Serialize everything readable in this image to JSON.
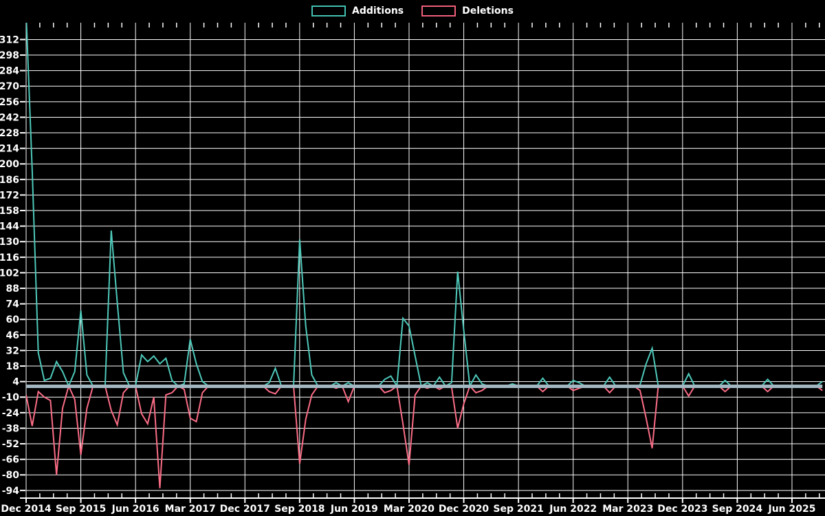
{
  "page": {
    "background_color": "#000000"
  },
  "legend": {
    "position": "top-center",
    "items": [
      {
        "label": "Additions",
        "color": "#43c1b3"
      },
      {
        "label": "Deletions",
        "color": "#ef5f7b"
      }
    ]
  },
  "chart_data": {
    "type": "line",
    "title": "",
    "grid": true,
    "legend_position": "top-center",
    "x_axis": {
      "tick_labels": [
        "Dec 2014",
        "Sep 2015",
        "Jun 2016",
        "Mar 2017",
        "Dec 2017",
        "Sep 2018",
        "Jun 2019",
        "Mar 2020",
        "Dec 2020",
        "Sep 2021",
        "Jun 2022",
        "Mar 2023",
        "Dec 2023",
        "Sep 2024",
        "Jun 2025"
      ],
      "months_per_tick": 9,
      "minor_ticks_per_interval": 4
    },
    "y_axis": {
      "tick_labels": [
        312,
        298,
        284,
        270,
        256,
        242,
        228,
        214,
        200,
        186,
        172,
        158,
        144,
        130,
        116,
        102,
        88,
        74,
        60,
        46,
        32,
        18,
        4,
        -10,
        -24,
        -38,
        -52,
        -66,
        -80,
        -94
      ],
      "tick_step": 14,
      "visible_range": [
        -100,
        327
      ]
    },
    "colors": {
      "additions_line": "#4ec9ba",
      "deletions_line": "#fb6d86",
      "baseline_line": "#a2b7c1",
      "grid_line": "#ffffff",
      "axis_text": "#ffffff"
    },
    "months_total": 132,
    "baseline": {
      "additions": 0,
      "deletions": 0
    },
    "first_point_note": "Dec 2014 additions peak is clipped at the top of the plot",
    "events": [
      {
        "i": 0,
        "month": "Dec 2014",
        "additions": 335,
        "deletions": 8
      },
      {
        "i": 1,
        "month": "Jan 2015",
        "additions": 195,
        "deletions": 36
      },
      {
        "i": 2,
        "month": "Feb 2015",
        "additions": 30,
        "deletions": 5
      },
      {
        "i": 3,
        "month": "Mar 2015",
        "additions": 5,
        "deletions": 10
      },
      {
        "i": 4,
        "month": "Apr 2015",
        "additions": 7,
        "deletions": 13
      },
      {
        "i": 5,
        "month": "May 2015",
        "additions": 22,
        "deletions": 80
      },
      {
        "i": 6,
        "month": "Jun 2015",
        "additions": 13,
        "deletions": 20
      },
      {
        "i": 8,
        "month": "Aug 2015",
        "additions": 13,
        "deletions": 12
      },
      {
        "i": 9,
        "month": "Sep 2015",
        "additions": 68,
        "deletions": 62
      },
      {
        "i": 10,
        "month": "Oct 2015",
        "additions": 10,
        "deletions": 20
      },
      {
        "i": 14,
        "month": "Feb 2016",
        "additions": 140,
        "deletions": 22
      },
      {
        "i": 15,
        "month": "Mar 2016",
        "additions": 75,
        "deletions": 35
      },
      {
        "i": 16,
        "month": "Apr 2016",
        "additions": 12,
        "deletions": 6
      },
      {
        "i": 19,
        "month": "Jul 2016",
        "additions": 28,
        "deletions": 25
      },
      {
        "i": 20,
        "month": "Aug 2016",
        "additions": 22,
        "deletions": 34
      },
      {
        "i": 21,
        "month": "Sep 2016",
        "additions": 27,
        "deletions": 10
      },
      {
        "i": 22,
        "month": "Oct 2016",
        "additions": 20,
        "deletions": 92
      },
      {
        "i": 23,
        "month": "Nov 2016",
        "additions": 25,
        "deletions": 8
      },
      {
        "i": 24,
        "month": "Dec 2016",
        "additions": 5,
        "deletions": 6
      },
      {
        "i": 26,
        "month": "Feb 2017",
        "additions": 2,
        "deletions": 3
      },
      {
        "i": 27,
        "month": "Mar 2017",
        "additions": 42,
        "deletions": 29
      },
      {
        "i": 28,
        "month": "Apr 2017",
        "additions": 20,
        "deletions": 32
      },
      {
        "i": 29,
        "month": "May 2017",
        "additions": 4,
        "deletions": 6
      },
      {
        "i": 40,
        "month": "Apr 2018",
        "additions": 3,
        "deletions": 5
      },
      {
        "i": 41,
        "month": "May 2018",
        "additions": 16,
        "deletions": 7
      },
      {
        "i": 45,
        "month": "Sep 2018",
        "additions": 132,
        "deletions": 70
      },
      {
        "i": 46,
        "month": "Oct 2018",
        "additions": 54,
        "deletions": 30
      },
      {
        "i": 47,
        "month": "Nov 2018",
        "additions": 10,
        "deletions": 8
      },
      {
        "i": 51,
        "month": "Mar 2019",
        "additions": 3,
        "deletions": 2
      },
      {
        "i": 53,
        "month": "May 2019",
        "additions": 3,
        "deletions": 14
      },
      {
        "i": 59,
        "month": "Nov 2019",
        "additions": 6,
        "deletions": 6
      },
      {
        "i": 60,
        "month": "Dec 2019",
        "additions": 9,
        "deletions": 4
      },
      {
        "i": 62,
        "month": "Feb 2020",
        "additions": 61,
        "deletions": 34
      },
      {
        "i": 63,
        "month": "Mar 2020",
        "additions": 54,
        "deletions": 71
      },
      {
        "i": 64,
        "month": "Apr 2020",
        "additions": 27,
        "deletions": 8
      },
      {
        "i": 66,
        "month": "Jun 2020",
        "additions": 3,
        "deletions": 2
      },
      {
        "i": 68,
        "month": "Aug 2020",
        "additions": 8,
        "deletions": 3
      },
      {
        "i": 70,
        "month": "Oct 2020",
        "additions": 3,
        "deletions": 1
      },
      {
        "i": 71,
        "month": "Nov 2020",
        "additions": 103,
        "deletions": 38
      },
      {
        "i": 72,
        "month": "Dec 2020",
        "additions": 50,
        "deletions": 16
      },
      {
        "i": 74,
        "month": "Feb 2021",
        "additions": 10,
        "deletions": 6
      },
      {
        "i": 75,
        "month": "Mar 2021",
        "additions": 2,
        "deletions": 4
      },
      {
        "i": 80,
        "month": "Aug 2021",
        "additions": 2,
        "deletions": 1
      },
      {
        "i": 85,
        "month": "Jan 2022",
        "additions": 7,
        "deletions": 5
      },
      {
        "i": 90,
        "month": "Jun 2022",
        "additions": 5,
        "deletions": 4
      },
      {
        "i": 91,
        "month": "Jul 2022",
        "additions": 3,
        "deletions": 2
      },
      {
        "i": 96,
        "month": "Dec 2022",
        "additions": 8,
        "deletions": 6
      },
      {
        "i": 101,
        "month": "May 2023",
        "additions": 1,
        "deletions": 4
      },
      {
        "i": 102,
        "month": "Jun 2023",
        "additions": 20,
        "deletions": 29
      },
      {
        "i": 103,
        "month": "Jul 2023",
        "additions": 34,
        "deletions": 56
      },
      {
        "i": 109,
        "month": "Jan 2024",
        "additions": 11,
        "deletions": 9
      },
      {
        "i": 115,
        "month": "Jul 2024",
        "additions": 5,
        "deletions": 5
      },
      {
        "i": 122,
        "month": "Feb 2025",
        "additions": 6,
        "deletions": 5
      },
      {
        "i": 131,
        "month": "Nov 2025",
        "additions": 4,
        "deletions": 4
      }
    ]
  }
}
